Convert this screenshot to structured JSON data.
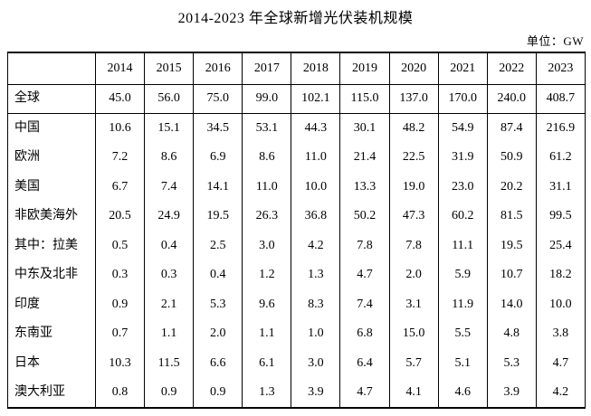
{
  "page": {
    "title": "2014-2023 年全球新增光伏装机规模",
    "unit_label": "单位：GW"
  },
  "colors": {
    "text": "#000000",
    "border": "#000000",
    "background": "#ffffff"
  },
  "chart_data": {
    "type": "table",
    "title": "2014-2023 年全球新增光伏装机规模",
    "unit": "GW",
    "columns": [
      "2014",
      "2015",
      "2016",
      "2017",
      "2018",
      "2019",
      "2020",
      "2021",
      "2022",
      "2023"
    ],
    "series": [
      {
        "name": "全球",
        "values": [
          45.0,
          56.0,
          75.0,
          99.0,
          102.1,
          115.0,
          137.0,
          170.0,
          240.0,
          408.7
        ]
      },
      {
        "name": "中国",
        "values": [
          10.6,
          15.1,
          34.5,
          53.1,
          44.3,
          30.1,
          48.2,
          54.9,
          87.4,
          216.9
        ]
      },
      {
        "name": "欧洲",
        "values": [
          7.2,
          8.6,
          6.9,
          8.6,
          11.0,
          21.4,
          22.5,
          31.9,
          50.9,
          61.2
        ]
      },
      {
        "name": "美国",
        "values": [
          6.7,
          7.4,
          14.1,
          11.0,
          10.0,
          13.3,
          19.0,
          23.0,
          20.2,
          31.1
        ]
      },
      {
        "name": "非欧美海外",
        "values": [
          20.5,
          24.9,
          19.5,
          26.3,
          36.8,
          50.2,
          47.3,
          60.2,
          81.5,
          99.5
        ]
      },
      {
        "name": "其中：拉美",
        "values": [
          0.5,
          0.4,
          2.5,
          3.0,
          4.2,
          7.8,
          7.8,
          11.1,
          19.5,
          25.4
        ]
      },
      {
        "name": "中东及北非",
        "values": [
          0.3,
          0.3,
          0.4,
          1.2,
          1.3,
          4.7,
          2.0,
          5.9,
          10.7,
          18.2
        ]
      },
      {
        "name": "印度",
        "values": [
          0.9,
          2.1,
          5.3,
          9.6,
          8.3,
          7.4,
          3.1,
          11.9,
          14.0,
          10.0
        ]
      },
      {
        "name": "东南亚",
        "values": [
          0.7,
          1.1,
          2.0,
          1.1,
          1.0,
          6.8,
          15.0,
          5.5,
          4.8,
          3.8
        ]
      },
      {
        "name": "日本",
        "values": [
          10.3,
          11.5,
          6.6,
          6.1,
          3.0,
          6.4,
          5.7,
          5.1,
          5.3,
          4.7
        ]
      },
      {
        "name": "澳大利亚",
        "values": [
          0.8,
          0.9,
          0.9,
          1.3,
          3.9,
          4.7,
          4.1,
          4.6,
          3.9,
          4.2
        ]
      }
    ],
    "layout": {
      "rules": "horizontal lines only below header row and below first data row (全球); vertical lines between all columns",
      "value_decimals": 1
    }
  }
}
